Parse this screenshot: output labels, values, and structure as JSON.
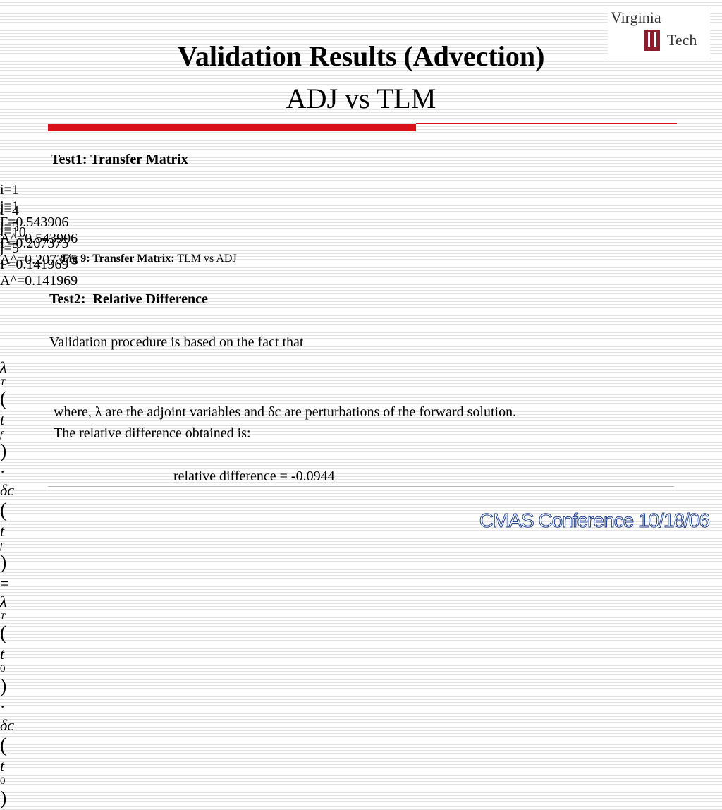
{
  "header": {
    "title": "Validation Results (Advection)",
    "subtitle": "ADJ vs TLM",
    "logo": [
      "Virginia",
      "Tech"
    ]
  },
  "test1": {
    "heading": "Test1: Transfer Matrix",
    "rows": [
      [
        "i=1",
        "j=1",
        "F=0.543906",
        "A^=0.543906"
      ],
      [
        "i=4",
        "j=5",
        "F=0.207375",
        "A^=0.207375"
      ],
      [
        "i=10",
        "j=5",
        "F=0.141969",
        "A^=0.141969"
      ]
    ],
    "caption": {
      "label": "Fig 9: Transfer Matrix:",
      "text": "TLM vs ADJ"
    }
  },
  "test2": {
    "heading": "Test2:  Relative Difference",
    "intro": "Validation procedure is based on the fact that",
    "equation": [
      "λ",
      "T",
      "(",
      "t",
      "f",
      ")",
      "·",
      "δc",
      "(",
      "t",
      "f",
      ")",
      "=",
      "λ",
      "T",
      "(",
      "t",
      "0",
      ")",
      "·",
      "δc",
      "(",
      "t",
      "0",
      ")"
    ],
    "explanation": [
      "where, λ are the adjoint variables and δc are perturbations of the forward solution.",
      "The relative difference obtained is:"
    ],
    "result": "relative difference = -0.0944"
  },
  "footer": "CMAS Conference 10/18/06"
}
